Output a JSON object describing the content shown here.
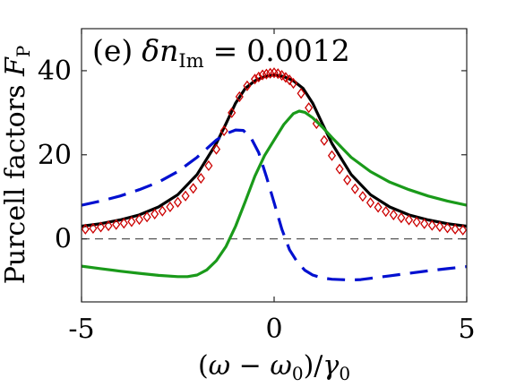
{
  "chart_data": {
    "type": "line",
    "panel_label": "(e)",
    "annotation": {
      "symbol": "δn",
      "subscript": "Im",
      "equals": "=",
      "value": "0.0012"
    },
    "ylabel": {
      "text": "Purcell factors ",
      "symbol": "F",
      "subscript": "P"
    },
    "xlabel": {
      "open": "(",
      "omega": "ω",
      "minus": " − ",
      "omega0": "ω",
      "omega0_sub": "0",
      "close": ")/",
      "gamma": "γ",
      "gamma_sub": "0"
    },
    "xlim": [
      -5,
      5
    ],
    "ylim": [
      -15,
      50
    ],
    "xticks": [
      -5,
      0,
      5
    ],
    "yticks": [
      0,
      20,
      40
    ],
    "xtick_labels": [
      "-5",
      "0",
      "5"
    ],
    "ytick_labels": [
      "0",
      "20",
      "40"
    ],
    "grid": false,
    "reference_line": {
      "y": 0,
      "style": "dashed",
      "color": "#555555"
    },
    "series": [
      {
        "style": "solid",
        "color": "#000000",
        "x": [
          -5,
          -4.5,
          -4,
          -3.5,
          -3,
          -2.5,
          -2,
          -1.5,
          -1.25,
          -1,
          -0.75,
          -0.5,
          -0.25,
          0,
          0.25,
          0.5,
          0.75,
          1,
          1.25,
          1.5,
          2,
          2.5,
          3,
          3.5,
          4,
          4.5,
          5
        ],
        "y": [
          3.0,
          3.6,
          4.5,
          5.7,
          7.6,
          10.5,
          15.3,
          22.7,
          27.4,
          32.3,
          35.8,
          37.6,
          38.6,
          39.0,
          38.6,
          37.6,
          35.8,
          32.3,
          27.4,
          22.7,
          15.3,
          10.5,
          7.6,
          5.7,
          4.5,
          3.6,
          3.0
        ]
      },
      {
        "style": "markers",
        "marker": "diamond",
        "color": "#cc0000",
        "x": [
          -4.9,
          -4.7,
          -4.5,
          -4.3,
          -4.1,
          -3.9,
          -3.7,
          -3.5,
          -3.3,
          -3.1,
          -2.9,
          -2.7,
          -2.5,
          -2.3,
          -2.1,
          -1.9,
          -1.7,
          -1.5,
          -1.3,
          -1.1,
          -0.9,
          -0.7,
          -0.5,
          -0.4,
          -0.3,
          -0.2,
          -0.1,
          0,
          0.1,
          0.2,
          0.3,
          0.4,
          0.5,
          0.7,
          0.9,
          1.1,
          1.3,
          1.5,
          1.7,
          1.9,
          2.1,
          2.3,
          2.5,
          2.7,
          2.9,
          3.1,
          3.3,
          3.5,
          3.7,
          3.9,
          4.1,
          4.3,
          4.5,
          4.7,
          4.9
        ],
        "y": [
          2.3,
          2.5,
          2.8,
          3.1,
          3.4,
          3.7,
          4.1,
          4.6,
          5.2,
          5.9,
          6.6,
          7.6,
          8.7,
          10.2,
          12.0,
          14.4,
          17.4,
          21.3,
          25.7,
          30.0,
          33.8,
          36.4,
          38.0,
          38.5,
          39.0,
          39.2,
          39.4,
          39.5,
          39.3,
          38.9,
          38.4,
          37.8,
          37.0,
          34.6,
          31.2,
          27.4,
          23.4,
          19.8,
          16.6,
          14.0,
          11.9,
          10.1,
          8.6,
          7.5,
          6.5,
          5.7,
          5.0,
          4.5,
          4.0,
          3.6,
          3.2,
          2.9,
          2.6,
          2.3,
          2.1
        ]
      },
      {
        "style": "solid",
        "color": "#1a9a1a",
        "x": [
          -5,
          -4.5,
          -4,
          -3.5,
          -3,
          -2.5,
          -2.25,
          -2,
          -1.75,
          -1.5,
          -1.25,
          -1,
          -0.75,
          -0.5,
          -0.25,
          0,
          0.25,
          0.5,
          0.65,
          0.8,
          1,
          1.25,
          1.5,
          2,
          2.5,
          3,
          3.5,
          4,
          4.5,
          5
        ],
        "y": [
          -6.5,
          -7.1,
          -7.7,
          -8.2,
          -8.7,
          -9.0,
          -9.0,
          -8.6,
          -7.4,
          -5.2,
          -1.8,
          3.0,
          8.9,
          14.9,
          19.8,
          23.5,
          27.2,
          29.8,
          30.4,
          30.1,
          28.8,
          26.6,
          24.1,
          19.4,
          16.0,
          13.5,
          11.7,
          10.2,
          9.0,
          8.0
        ]
      },
      {
        "style": "dashed",
        "color": "#0010d0",
        "x": [
          -5,
          -4.5,
          -4,
          -3.5,
          -3,
          -2.5,
          -2,
          -1.5,
          -1.25,
          -1,
          -0.8,
          -0.6,
          -0.4,
          -0.2,
          0,
          0.2,
          0.4,
          0.6,
          0.8,
          1,
          1.25,
          1.5,
          2,
          2.25,
          2.5,
          3,
          3.5,
          4,
          4.5,
          5
        ],
        "y": [
          8.0,
          9.0,
          10.2,
          11.7,
          13.5,
          16.0,
          19.4,
          23.5,
          25.0,
          25.9,
          25.8,
          24.0,
          20.5,
          14.8,
          8.6,
          2.3,
          -2.6,
          -5.5,
          -7.5,
          -8.6,
          -9.3,
          -9.6,
          -9.8,
          -9.7,
          -9.4,
          -8.8,
          -8.2,
          -7.6,
          -7.1,
          -6.6
        ]
      }
    ]
  }
}
